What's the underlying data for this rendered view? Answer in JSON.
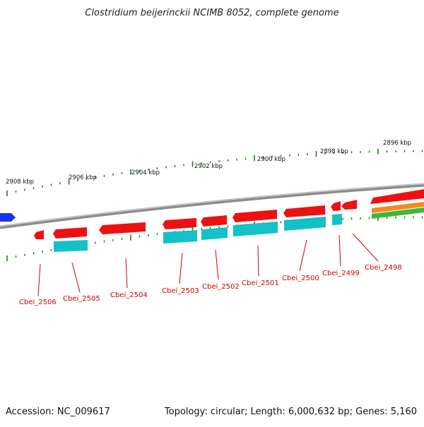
{
  "title": "Clostridium beijerinckii NCIMB 8052, complete genome",
  "footer": {
    "accession": "Accession: NC_009617",
    "stats": "Topology: circular; Length: 6,000,632 bp; Genes: 5,160"
  },
  "colors": {
    "background": "#ffffff",
    "backbone": "#8c8c8c",
    "tick": "#1a7a1a",
    "gene_forward": "#ee1111",
    "cds": "#13c1c8",
    "label": "#cc0000",
    "blue_gene": "#1a33ee",
    "orange_track": "#f08c1a",
    "green_track": "#3cb83c"
  },
  "kbp_labels": [
    {
      "text": "2908 kbp"
    },
    {
      "text": "2906 kbp"
    },
    {
      "text": "2904 kbp"
    },
    {
      "text": "2902 kbp"
    },
    {
      "text": "2900 kbp"
    },
    {
      "text": "2898 kbp"
    },
    {
      "text": "2896 kbp"
    }
  ],
  "genes": [
    {
      "name": "Cbei_2506"
    },
    {
      "name": "Cbei_2505"
    },
    {
      "name": "Cbei_2504"
    },
    {
      "name": "Cbei_2503"
    },
    {
      "name": "Cbei_2502"
    },
    {
      "name": "Cbei_2501"
    },
    {
      "name": "Cbei_2500"
    },
    {
      "name": "Cbei_2499"
    },
    {
      "name": "Cbei_2498"
    }
  ]
}
